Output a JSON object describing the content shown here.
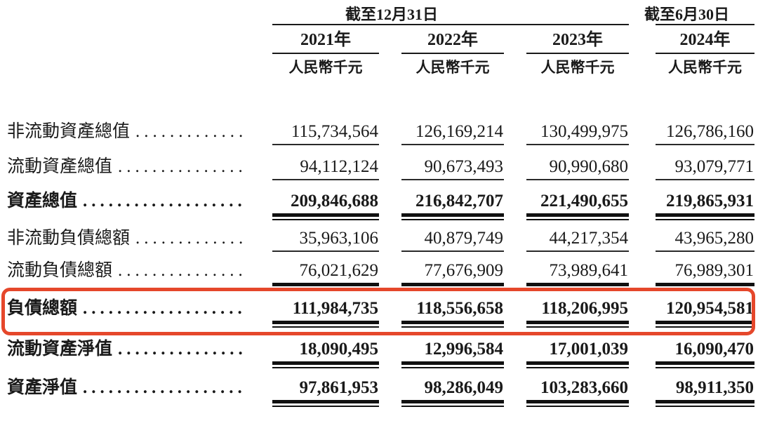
{
  "table": {
    "group1": {
      "label": "截至12月31日"
    },
    "group2": {
      "label": "截至6月30日"
    },
    "years": [
      "2021年",
      "2022年",
      "2023年",
      "2024年"
    ],
    "units": [
      "人民幣千元",
      "人民幣千元",
      "人民幣千元",
      "人民幣千元"
    ],
    "rows": [
      {
        "label": "非流動資產總值",
        "dots": "..............................",
        "bold": false,
        "values": [
          "115,734,564",
          "126,169,214",
          "130,499,975",
          "126,786,160"
        ]
      },
      {
        "label": "流動資產總值",
        "dots": "..............................",
        "bold": false,
        "values": [
          "94,112,124",
          "90,673,493",
          "90,990,680",
          "93,079,771"
        ]
      },
      {
        "label": "資產總值",
        "dots": "..............................",
        "bold": true,
        "values": [
          "209,846,688",
          "216,842,707",
          "221,490,655",
          "219,865,931"
        ]
      },
      {
        "label": "非流動負債總額",
        "dots": "..............................",
        "bold": false,
        "values": [
          "35,963,106",
          "40,879,749",
          "44,217,354",
          "43,965,280"
        ]
      },
      {
        "label": "流動負債總額",
        "dots": "..............................",
        "bold": false,
        "values": [
          "76,021,629",
          "77,676,909",
          "73,989,641",
          "76,989,301"
        ]
      },
      {
        "label": "負債總額",
        "dots": "..............................",
        "bold": true,
        "highlighted": true,
        "values": [
          "111,984,735",
          "118,556,658",
          "118,206,995",
          "120,954,581"
        ]
      },
      {
        "label": "流動資產淨值",
        "dots": "..............................",
        "bold": true,
        "values": [
          "18,090,495",
          "12,996,584",
          "17,001,039",
          "16,090,470"
        ]
      },
      {
        "label": "資產淨值",
        "dots": "..............................",
        "bold": true,
        "values": [
          "97,861,953",
          "98,286,049",
          "103,283,660",
          "98,911,350"
        ]
      }
    ],
    "highlight_color": "#e5472b",
    "text_color": "#1a1a1a"
  }
}
